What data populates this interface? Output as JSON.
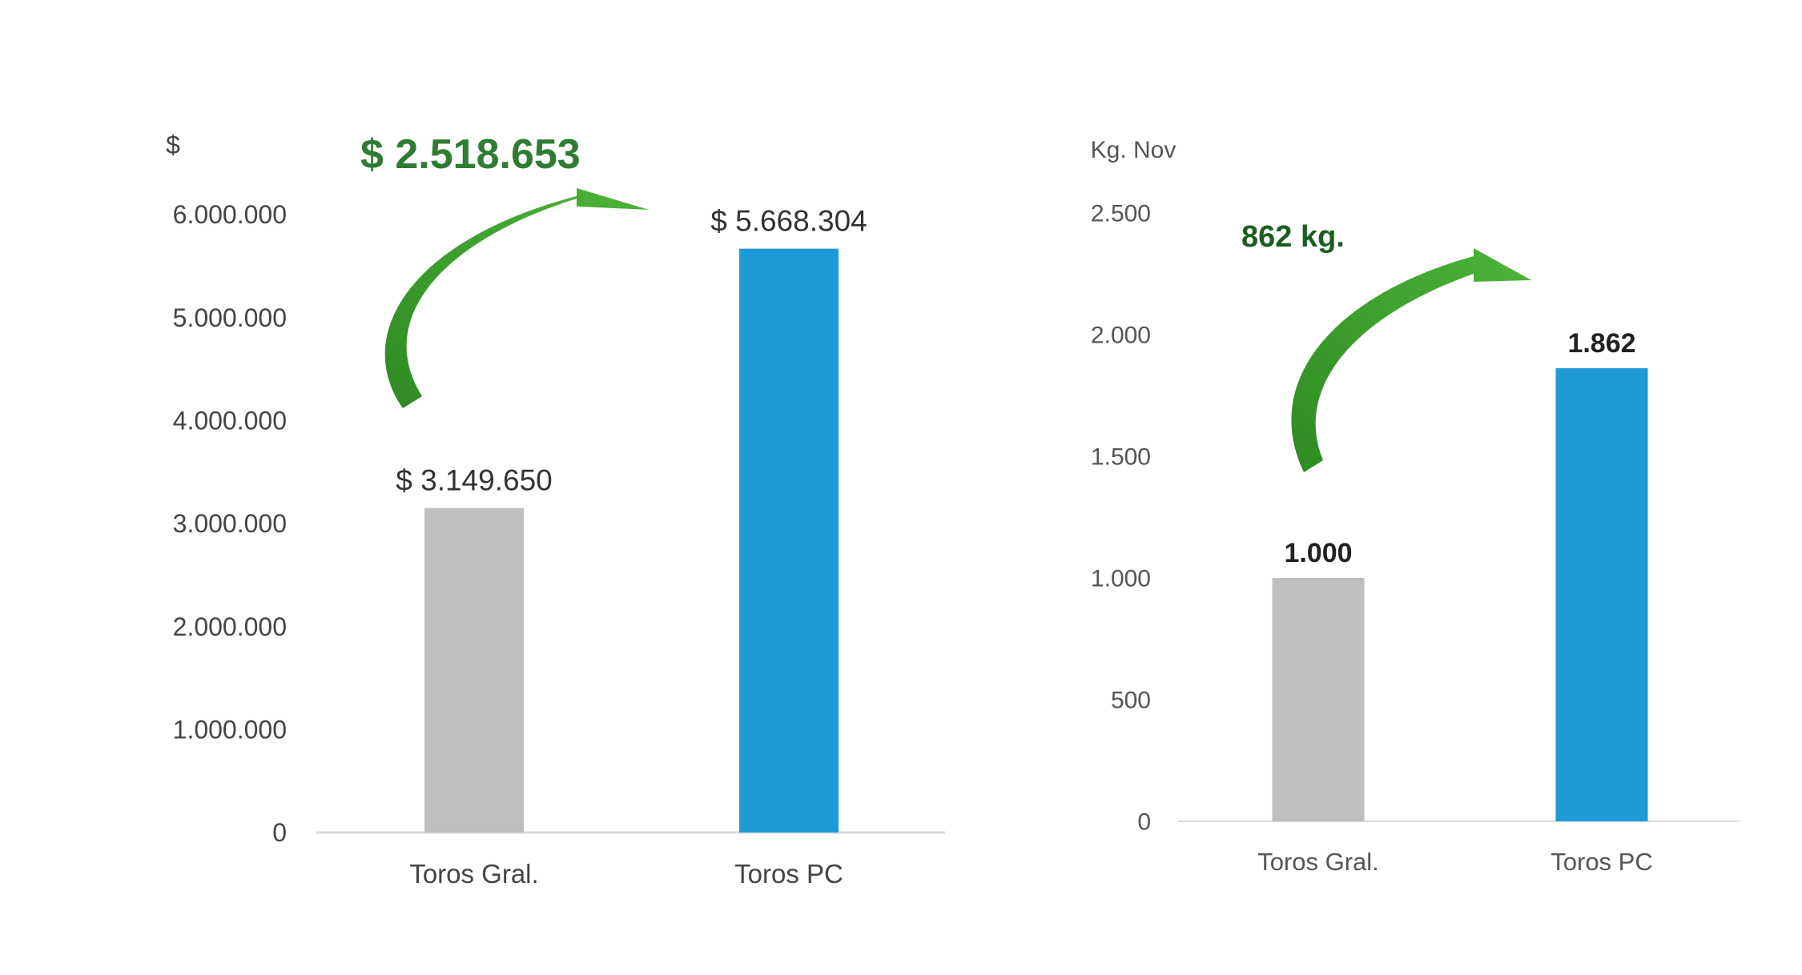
{
  "chart_data": [
    {
      "type": "bar",
      "ylabel": "$",
      "categories": [
        "Toros Gral.",
        "Toros PC"
      ],
      "values": [
        3149650,
        5668304
      ],
      "value_labels": [
        "$ 3.149.650",
        "$ 5.668.304"
      ],
      "bar_colors": [
        "#bfbfbf",
        "#1e9bd7"
      ],
      "ylim": [
        0,
        6000000
      ],
      "yticks": [
        0,
        1000000,
        2000000,
        3000000,
        4000000,
        5000000,
        6000000
      ],
      "ytick_labels": [
        "0",
        "1.000.000",
        "2.000.000",
        "3.000.000",
        "4.000.000",
        "5.000.000",
        "6.000.000"
      ],
      "annotation": {
        "text": "$ 2.518.653",
        "color": "#2e7d32",
        "arrow_color": "#43a331"
      },
      "grid": false
    },
    {
      "type": "bar",
      "ylabel": "Kg. Nov",
      "categories": [
        "Toros Gral.",
        "Toros PC"
      ],
      "values": [
        1000,
        1862
      ],
      "value_labels": [
        "1.000",
        "1.862"
      ],
      "bar_colors": [
        "#bfbfbf",
        "#1e9bd7"
      ],
      "ylim": [
        0,
        2500
      ],
      "yticks": [
        0,
        500,
        1000,
        1500,
        2000,
        2500
      ],
      "ytick_labels": [
        "0",
        "500",
        "1.000",
        "1.500",
        "2.000",
        "2.500"
      ],
      "annotation": {
        "text": "862 kg.",
        "color": "#1b5e20",
        "arrow_color": "#43a331"
      },
      "grid": false
    }
  ]
}
